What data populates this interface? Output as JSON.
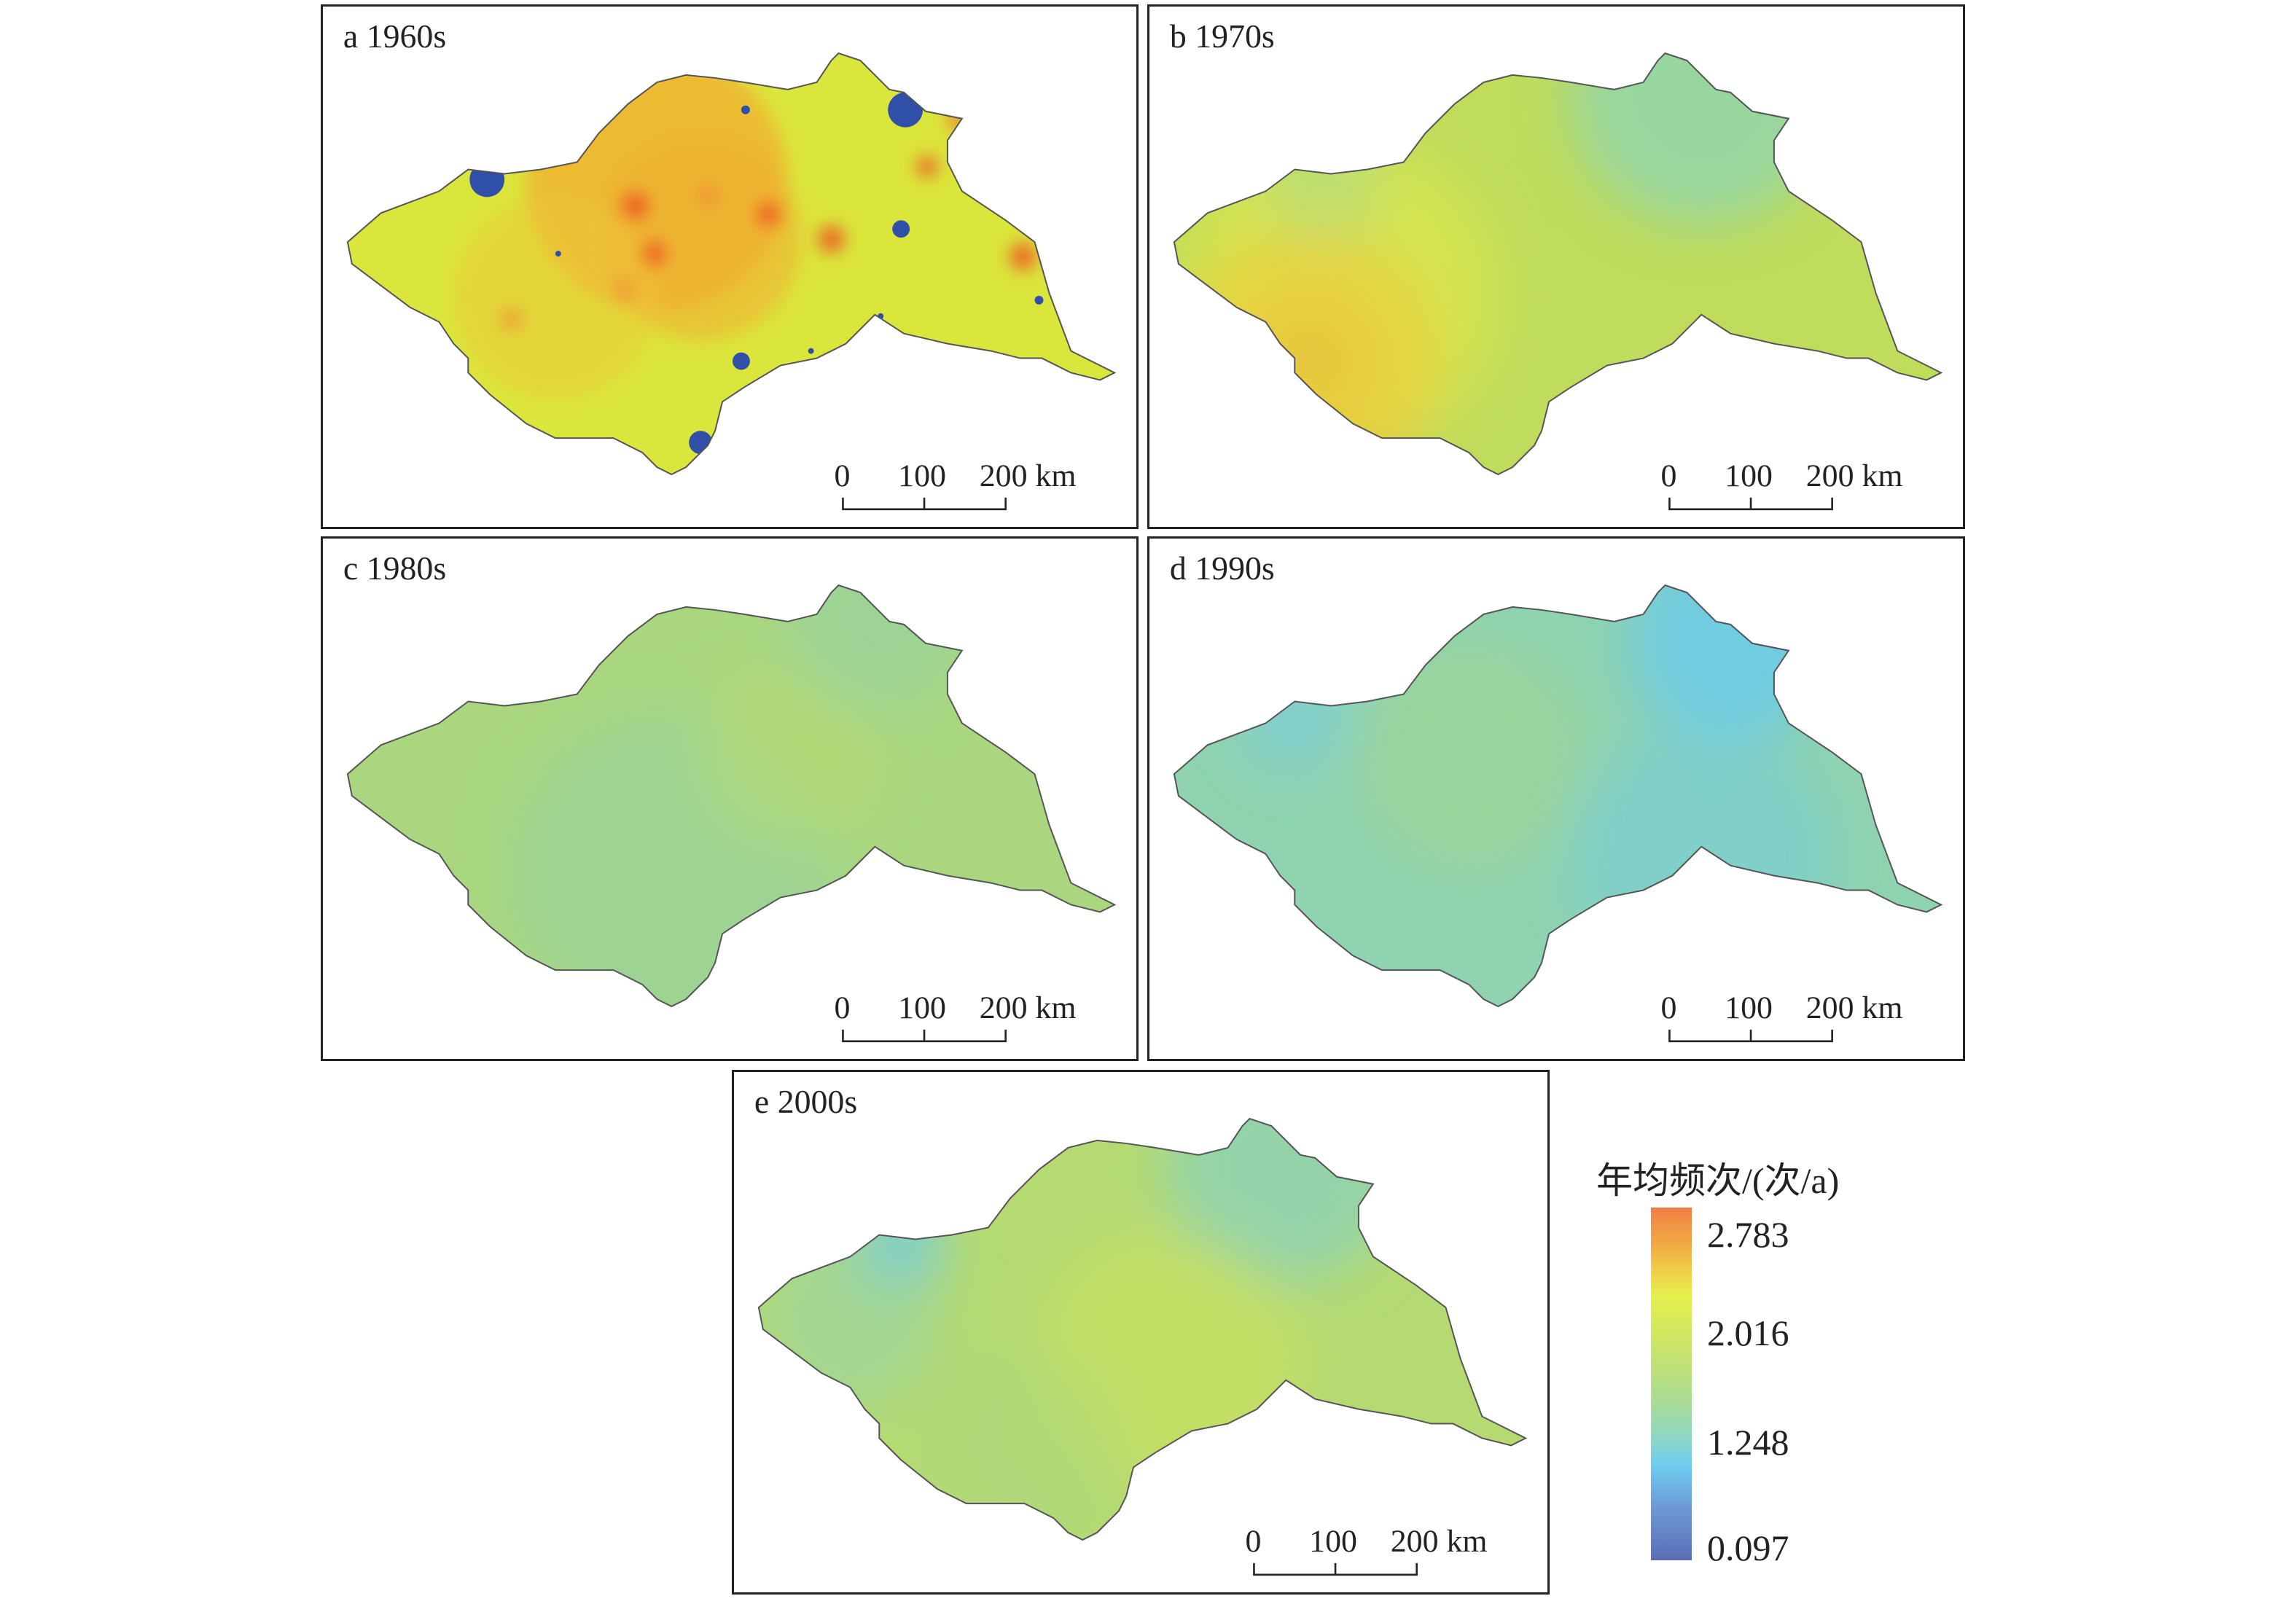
{
  "panels": [
    {
      "id": "a",
      "label": "a 1960s"
    },
    {
      "id": "b",
      "label": "b 1970s"
    },
    {
      "id": "c",
      "label": "c 1980s"
    },
    {
      "id": "d",
      "label": "d 1990s"
    },
    {
      "id": "e",
      "label": "e 2000s"
    }
  ],
  "scale_bar": {
    "t0": "0",
    "t1": "100",
    "t2": "200 km"
  },
  "legend": {
    "title": "年均频次/(次/a)",
    "ticks": [
      "2.783",
      "2.016",
      "1.248",
      "0.097"
    ],
    "colors": [
      "#f07f45",
      "#e6ee4c",
      "#aadb95",
      "#6fcdf0",
      "#5b6db8"
    ]
  }
}
